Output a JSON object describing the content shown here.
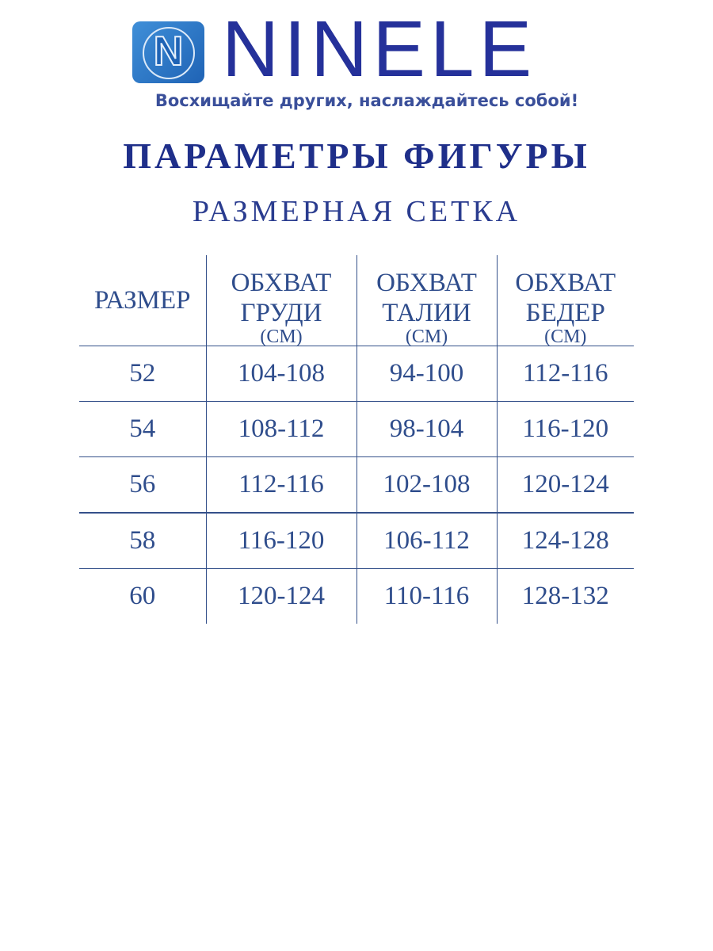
{
  "logo": {
    "brand": "NINELE",
    "emblem_letter": "N",
    "slogan": "Восхищайте других, наслаждайтесь собой!"
  },
  "title": "ПАРАМЕТРЫ ФИГУРЫ",
  "subtitle": "РАЗМЕРНАЯ СЕТКА",
  "table": {
    "headers": [
      {
        "line1": "РАЗМЕР",
        "line2": "",
        "unit": ""
      },
      {
        "line1": "ОБХВАТ",
        "line2": "ГРУДИ",
        "unit": "(СМ)"
      },
      {
        "line1": "ОБХВАТ",
        "line2": "ТАЛИИ",
        "unit": "(СМ)"
      },
      {
        "line1": "ОБХВАТ",
        "line2": "БЕДЕР",
        "unit": "(СМ)"
      }
    ],
    "rows": [
      [
        "52",
        "104-108",
        "94-100",
        "112-116"
      ],
      [
        "54",
        "108-112",
        "98-104",
        "116-120"
      ],
      [
        "56",
        "112-116",
        "102-108",
        "120-124"
      ],
      [
        "58",
        "116-120",
        "106-112",
        "124-128"
      ],
      [
        "60",
        "120-124",
        "110-116",
        "128-132"
      ]
    ]
  },
  "colors": {
    "brand": "#25319a",
    "text": "#2f4d8c",
    "logo_bg": "#2f7ac8"
  }
}
